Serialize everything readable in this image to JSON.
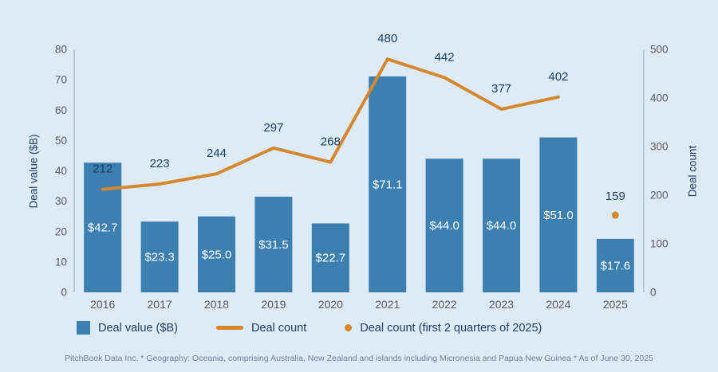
{
  "colors": {
    "background": "#dcebf6",
    "bar": "#3c7fb1",
    "line": "#d6862c",
    "navy": "#1f3b5e",
    "axis_text": "#585a5c",
    "axis_line": "#b3bcc4",
    "bar_label": "#ffffff",
    "footer_text": "#6e8096"
  },
  "chart_data": {
    "type": "combo-bar-line",
    "categories": [
      "2016",
      "2017",
      "2018",
      "2019",
      "2020",
      "2021",
      "2022",
      "2023",
      "2024",
      "2025"
    ],
    "series": [
      {
        "name": "Deal value ($B)",
        "type": "bar",
        "axis": "left",
        "values": [
          42.7,
          23.3,
          25.0,
          31.5,
          22.7,
          71.1,
          44.0,
          44.0,
          51.0,
          17.6
        ],
        "labels": [
          "$42.7",
          "$23.3",
          "$25.0",
          "$31.5",
          "$22.7",
          "$71.1",
          "$44.0",
          "$44.0",
          "$51.0",
          "$17.6"
        ]
      },
      {
        "name": "Deal count",
        "type": "line",
        "axis": "right",
        "values": [
          212,
          223,
          244,
          297,
          268,
          480,
          442,
          377,
          402
        ],
        "labels": [
          "212",
          "223",
          "244",
          "297",
          "268",
          "480",
          "442",
          "377",
          "402"
        ]
      },
      {
        "name": "Deal count (first 2 quarters of 2025)",
        "type": "point",
        "axis": "right",
        "category": "2025",
        "value": 159,
        "label": "159"
      }
    ],
    "left_axis": {
      "label": "Deal value ($B)",
      "min": 0,
      "max": 80,
      "step": 10
    },
    "right_axis": {
      "label": "Deal count",
      "min": 0,
      "max": 500,
      "step": 100
    },
    "grid": false,
    "legend_position": "bottom-left"
  },
  "legend": [
    {
      "label": "Deal value ($B)",
      "swatch": "square"
    },
    {
      "label": "Deal count",
      "swatch": "line"
    },
    {
      "label": "Deal count (first 2 quarters of 2025)",
      "swatch": "dot"
    }
  ],
  "footer": "PitchBook Data Inc. * Geography: Oceania, comprising Australia, New Zealand and islands including Micronesia and Papua New Guinea * As of June 30, 2025"
}
